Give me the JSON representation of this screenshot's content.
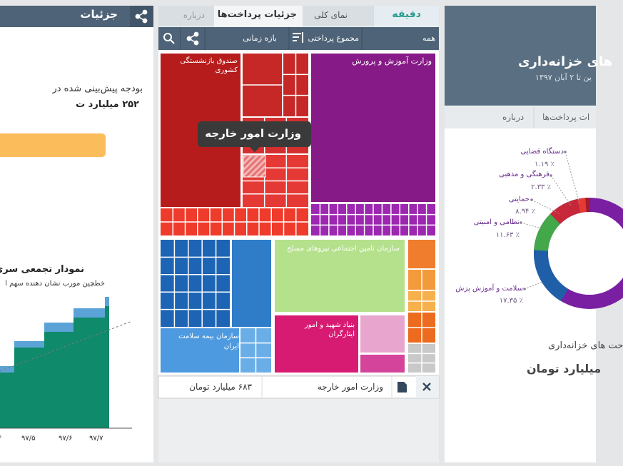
{
  "left_panel": {
    "header_title": "جزئیات",
    "budget_text": "بودجه پیش‌بینی شده در",
    "budget_amount": "۲۵۲ میلیارد ت",
    "chart_title": "نمودار تجمعی سری زم",
    "chart_subtitle": "خطچین مورب نشان دهنده سهم ا",
    "x_labels": [
      "۴",
      "۹۷/۵",
      "۹۷/۶",
      "۹۷/۷"
    ]
  },
  "middle_panel": {
    "logo": "دقیقه",
    "tabs": [
      "نمای کلی",
      "جزئیات پرداخت‌ها",
      "درباره"
    ],
    "toolbar": {
      "filter": "همه",
      "sort": "مجموع پرداختی",
      "period": "بازه زمانی"
    },
    "treemap_labels": [
      "صندوق بازنشستگی کشوری",
      "وزارت آموزش و پرورش",
      "سازمان تامین اجتماعی نیروهای مسلح",
      "بنیاد شهید و امور ایثارگران",
      "سازمان بیمه سلامت ایران"
    ],
    "tooltip": "وزارت امور خارجه",
    "selection": {
      "name": "وزارت امور خارجه",
      "amount": "۶۸۳ میلیارد تومان"
    }
  },
  "right_panel": {
    "title": "های خزانه‌داری",
    "subtitle": "ین تا ۲ آبان ۱۳۹۷",
    "tabs": [
      "ات پرداخت‌ها",
      "درباره"
    ],
    "donut": [
      {
        "name": "دستگاه قضایی",
        "share": 1.19,
        "label": "٪ ۱.۱۹",
        "color": "#a31b2c"
      },
      {
        "name": "فرهنگی و مذهبی",
        "share": 2.33,
        "label": "٪ ۲.۳۳",
        "color": "#e53935"
      },
      {
        "name": "حمایتی",
        "share": 8.94,
        "label": "٪ ۸.۹۴",
        "color": "#c62839"
      },
      {
        "name": "نظامی و امنیتی",
        "share": 11.63,
        "label": "٪ ۱۱.۶۳",
        "color": "#43a84a"
      },
      {
        "name": "سلامت و آموزش پزش",
        "share": 17.35,
        "label": "٪ ۱۷.۳۵",
        "color": "#1f5fa8"
      }
    ],
    "total_caption": "حت های خزانه‌داری",
    "total_amount": "میلیارد تومان"
  }
}
